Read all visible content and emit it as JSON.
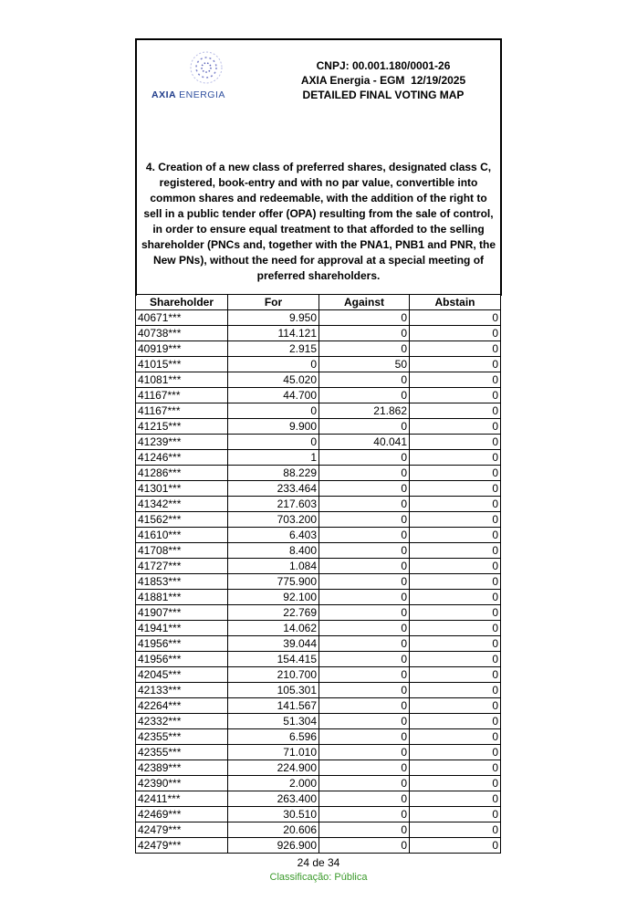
{
  "logo": {
    "brand_word1": "AXIA",
    "brand_word2": "ENERGIA",
    "color": "#1e3b8a"
  },
  "header": {
    "cnpj": "CNPJ: 00.001.180/0001-26",
    "meeting": "AXIA Energia - EGM  12/19/2025",
    "title": "DETAILED FINAL VOTING MAP"
  },
  "question": "4.  Creation of a new class of preferred shares, designated class C, registered, book-entry and with no par value, convertible into common shares and redeemable, with the addition of the right to sell in a public tender offer (OPA) resulting from the sale of control, in order to ensure equal treatment to that afforded to the selling shareholder (PNCs and, together with the PNA1, PNB1 and PNR, the New PNs), without the need for approval at a special meeting of preferred shareholders.",
  "table": {
    "columns": [
      "Shareholder",
      "For",
      "Against",
      "Abstain"
    ],
    "rows": [
      [
        "40671***",
        "9.950",
        "0",
        "0"
      ],
      [
        "40738***",
        "114.121",
        "0",
        "0"
      ],
      [
        "40919***",
        "2.915",
        "0",
        "0"
      ],
      [
        "41015***",
        "0",
        "50",
        "0"
      ],
      [
        "41081***",
        "45.020",
        "0",
        "0"
      ],
      [
        "41167***",
        "44.700",
        "0",
        "0"
      ],
      [
        "41167***",
        "0",
        "21.862",
        "0"
      ],
      [
        "41215***",
        "9.900",
        "0",
        "0"
      ],
      [
        "41239***",
        "0",
        "40.041",
        "0"
      ],
      [
        "41246***",
        "1",
        "0",
        "0"
      ],
      [
        "41286***",
        "88.229",
        "0",
        "0"
      ],
      [
        "41301***",
        "233.464",
        "0",
        "0"
      ],
      [
        "41342***",
        "217.603",
        "0",
        "0"
      ],
      [
        "41562***",
        "703.200",
        "0",
        "0"
      ],
      [
        "41610***",
        "6.403",
        "0",
        "0"
      ],
      [
        "41708***",
        "8.400",
        "0",
        "0"
      ],
      [
        "41727***",
        "1.084",
        "0",
        "0"
      ],
      [
        "41853***",
        "775.900",
        "0",
        "0"
      ],
      [
        "41881***",
        "92.100",
        "0",
        "0"
      ],
      [
        "41907***",
        "22.769",
        "0",
        "0"
      ],
      [
        "41941***",
        "14.062",
        "0",
        "0"
      ],
      [
        "41956***",
        "39.044",
        "0",
        "0"
      ],
      [
        "41956***",
        "154.415",
        "0",
        "0"
      ],
      [
        "42045***",
        "210.700",
        "0",
        "0"
      ],
      [
        "42133***",
        "105.301",
        "0",
        "0"
      ],
      [
        "42264***",
        "141.567",
        "0",
        "0"
      ],
      [
        "42332***",
        "51.304",
        "0",
        "0"
      ],
      [
        "42355***",
        "6.596",
        "0",
        "0"
      ],
      [
        "42355***",
        "71.010",
        "0",
        "0"
      ],
      [
        "42389***",
        "224.900",
        "0",
        "0"
      ],
      [
        "42390***",
        "2.000",
        "0",
        "0"
      ],
      [
        "42411***",
        "263.400",
        "0",
        "0"
      ],
      [
        "42469***",
        "30.510",
        "0",
        "0"
      ],
      [
        "42479***",
        "20.606",
        "0",
        "0"
      ],
      [
        "42479***",
        "926.900",
        "0",
        "0"
      ]
    ]
  },
  "footer": {
    "page": "24 de 34",
    "classification": "Classificação: Pública",
    "classification_color": "#3a9a2a"
  }
}
